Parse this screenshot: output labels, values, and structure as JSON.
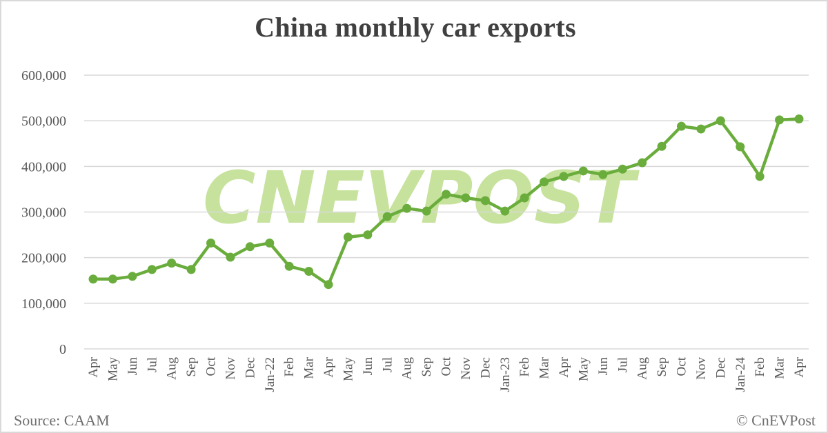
{
  "title": "China monthly car exports",
  "footer": {
    "source": "Source: CAAM",
    "copyright": "© CnEVPost"
  },
  "watermark": "CNEVPOST",
  "colors": {
    "line": "#6aad3d",
    "marker": "#6aad3d",
    "watermark": "#c6e29c",
    "grid": "#d9d9d9",
    "text": "#595959",
    "title": "#404040"
  },
  "chart_data": {
    "type": "line",
    "title": "China monthly car exports",
    "xlabel": "",
    "ylabel": "",
    "ylim": [
      0,
      600000
    ],
    "yticks": [
      0,
      100000,
      200000,
      300000,
      400000,
      500000,
      600000
    ],
    "ytick_labels": [
      "0",
      "100,000",
      "200,000",
      "300,000",
      "400,000",
      "500,000",
      "600,000"
    ],
    "grid": true,
    "legend": null,
    "categories": [
      "Apr",
      "May",
      "Jun",
      "Jul",
      "Aug",
      "Sep",
      "Oct",
      "Nov",
      "Dec",
      "Jan-22",
      "Feb",
      "Mar",
      "Apr",
      "May",
      "Jun",
      "Jul",
      "Aug",
      "Sep",
      "Oct",
      "Nov",
      "Dec",
      "Jan-23",
      "Feb",
      "Mar",
      "Apr",
      "May",
      "Jun",
      "Jul",
      "Aug",
      "Sep",
      "Oct",
      "Nov",
      "Dec",
      "Jan-24",
      "Feb",
      "Mar",
      "Apr"
    ],
    "series": [
      {
        "name": "Car exports",
        "values": [
          153000,
          153000,
          159000,
          174000,
          188000,
          174000,
          232000,
          201000,
          224000,
          232000,
          181000,
          170000,
          141000,
          245000,
          250000,
          290000,
          308000,
          302000,
          339000,
          331000,
          325000,
          302000,
          331000,
          366000,
          378000,
          390000,
          382000,
          394000,
          408000,
          444000,
          488000,
          482000,
          500000,
          443000,
          378000,
          502000,
          504000
        ]
      }
    ]
  }
}
